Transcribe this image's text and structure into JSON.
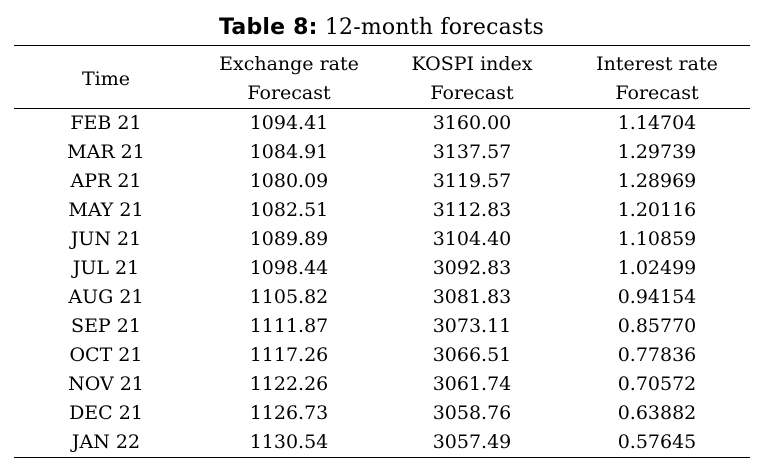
{
  "caption": {
    "label": "Table 8:",
    "title": "12-month forecasts"
  },
  "headers": [
    {
      "line1": "Time",
      "line2": ""
    },
    {
      "line1": "Exchange rate",
      "line2": "Forecast"
    },
    {
      "line1": "KOSPI index",
      "line2": "Forecast"
    },
    {
      "line1": "Interest rate",
      "line2": "Forecast"
    }
  ],
  "rows": [
    {
      "time": "FEB 21",
      "exchange": "1094.41",
      "kospi": "3160.00",
      "interest": "1.14704"
    },
    {
      "time": "MAR 21",
      "exchange": "1084.91",
      "kospi": "3137.57",
      "interest": "1.29739"
    },
    {
      "time": "APR 21",
      "exchange": "1080.09",
      "kospi": "3119.57",
      "interest": "1.28969"
    },
    {
      "time": "MAY 21",
      "exchange": "1082.51",
      "kospi": "3112.83",
      "interest": "1.20116"
    },
    {
      "time": "JUN 21",
      "exchange": "1089.89",
      "kospi": "3104.40",
      "interest": "1.10859"
    },
    {
      "time": "JUL 21",
      "exchange": "1098.44",
      "kospi": "3092.83",
      "interest": "1.02499"
    },
    {
      "time": "AUG 21",
      "exchange": "1105.82",
      "kospi": "3081.83",
      "interest": "0.94154"
    },
    {
      "time": "SEP 21",
      "exchange": "1111.87",
      "kospi": "3073.11",
      "interest": "0.85770"
    },
    {
      "time": "OCT 21",
      "exchange": "1117.26",
      "kospi": "3066.51",
      "interest": "0.77836"
    },
    {
      "time": "NOV 21",
      "exchange": "1122.26",
      "kospi": "3061.74",
      "interest": "0.70572"
    },
    {
      "time": "DEC 21",
      "exchange": "1126.73",
      "kospi": "3058.76",
      "interest": "0.63882"
    },
    {
      "time": "JAN 22",
      "exchange": "1130.54",
      "kospi": "3057.49",
      "interest": "0.57645"
    }
  ]
}
